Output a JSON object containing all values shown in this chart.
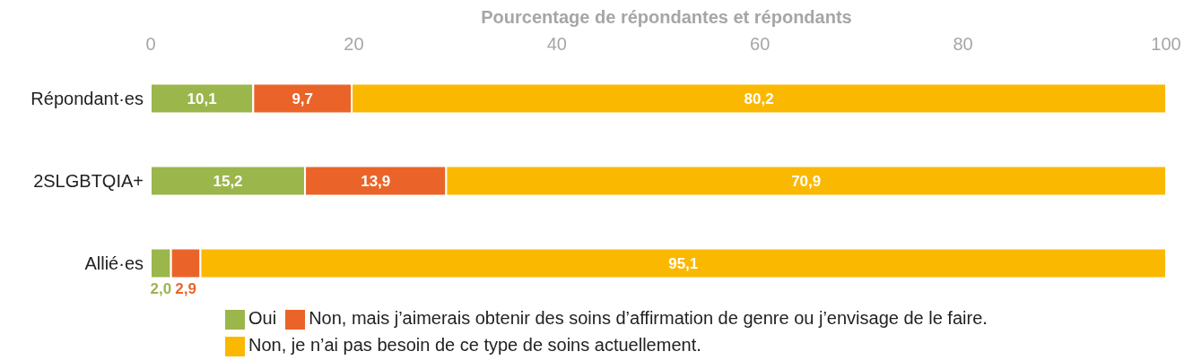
{
  "chart_data": {
    "type": "bar",
    "orientation": "horizontal",
    "stacked": true,
    "xlabel": "Pourcentage de répondantes et répondants",
    "categories": [
      "Répondant·es",
      "2SLGBTQIA+",
      "Allié·es"
    ],
    "series": [
      {
        "name": "Oui",
        "color": "#9bb64b",
        "values": [
          10.1,
          15.2,
          2.0
        ],
        "value_labels": [
          "10,1",
          "15,2",
          "2,0"
        ]
      },
      {
        "name": "Non, mais j’aimerais obtenir des soins d’affirmation de genre ou j’envisage de le faire.",
        "color": "#ea6429",
        "values": [
          9.7,
          13.9,
          2.9
        ],
        "value_labels": [
          "9,7",
          "13,9",
          "2,9"
        ]
      },
      {
        "name": "Non, je n’ai pas besoin de ce type de soins actuellement.",
        "color": "#fbb800",
        "values": [
          80.2,
          70.9,
          95.1
        ],
        "value_labels": [
          "80,2",
          "70,9",
          "95,1"
        ]
      }
    ],
    "xlim": [
      0,
      100
    ],
    "xticks": [
      0,
      20,
      40,
      60,
      80,
      100
    ],
    "grid": false,
    "legend": "bottom"
  }
}
